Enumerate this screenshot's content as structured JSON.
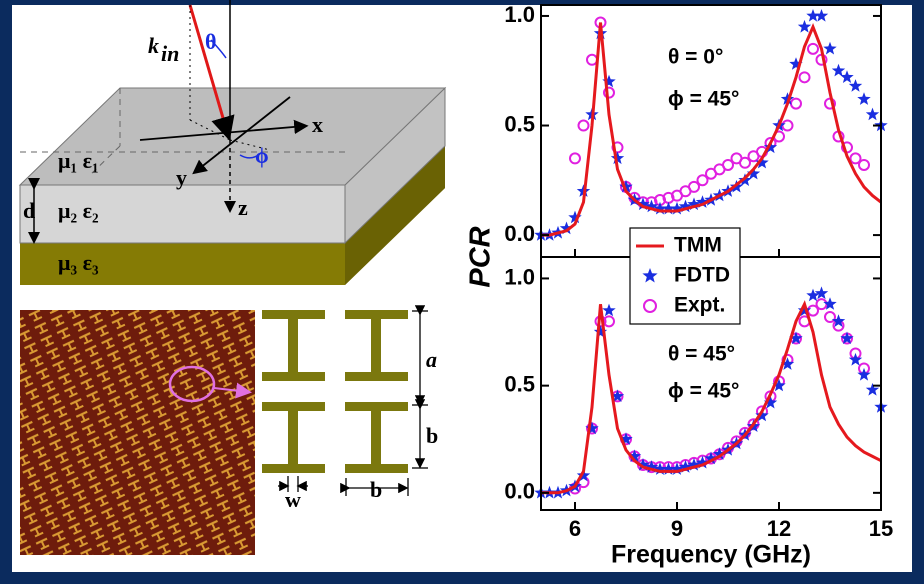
{
  "diagram": {
    "k": "k",
    "k_sub": "in",
    "theta": "θ",
    "x": "x",
    "y": "y",
    "z": "z",
    "phi": "ϕ",
    "layer1": "μ₁ ε₁",
    "layer2": "μ₂ ε₂",
    "layer3": "μ₃ ε₃",
    "d": "d",
    "a": "a",
    "b_vertical": "b",
    "w": "w",
    "b_horizontal": "b"
  },
  "chart_data": [
    {
      "type": "scatter",
      "ylabel": "PCR",
      "annotations": [
        "θ = 0°",
        "ϕ = 45°"
      ],
      "x": [
        5,
        5.25,
        5.5,
        5.75,
        6,
        6.25,
        6.5,
        6.75,
        7,
        7.25,
        7.5,
        7.75,
        8,
        8.25,
        8.5,
        8.75,
        9,
        9.25,
        9.5,
        9.75,
        10,
        10.25,
        10.5,
        10.75,
        11,
        11.25,
        11.5,
        11.75,
        12,
        12.25,
        12.5,
        12.75,
        13,
        13.25,
        13.5,
        13.75,
        14,
        14.25,
        14.5,
        14.75,
        15
      ],
      "series": [
        {
          "name": "TMM",
          "style": "line",
          "color": "#e5191e",
          "values": [
            0,
            0,
            0.01,
            0.02,
            0.05,
            0.15,
            0.5,
            0.97,
            0.55,
            0.3,
            0.2,
            0.16,
            0.13,
            0.12,
            0.11,
            0.11,
            0.11,
            0.12,
            0.13,
            0.14,
            0.16,
            0.18,
            0.2,
            0.23,
            0.26,
            0.3,
            0.35,
            0.42,
            0.5,
            0.6,
            0.72,
            0.86,
            0.95,
            0.85,
            0.65,
            0.48,
            0.36,
            0.28,
            0.22,
            0.18,
            0.15
          ]
        },
        {
          "name": "FDTD",
          "style": "star",
          "color": "#1a2ee0",
          "values": [
            0,
            0,
            0.01,
            0.03,
            0.08,
            0.2,
            0.55,
            0.92,
            0.7,
            0.35,
            0.22,
            0.16,
            0.14,
            0.13,
            0.12,
            0.12,
            0.12,
            0.13,
            0.14,
            0.15,
            0.16,
            0.18,
            0.2,
            0.22,
            0.25,
            0.28,
            0.33,
            0.4,
            0.5,
            0.62,
            0.78,
            0.95,
            1.0,
            1.0,
            0.85,
            0.75,
            0.72,
            0.68,
            0.62,
            0.55,
            0.5
          ]
        },
        {
          "name": "Expt.",
          "style": "circle",
          "color": "#e020e0",
          "values": [
            null,
            null,
            null,
            null,
            0.35,
            0.5,
            0.8,
            0.97,
            0.65,
            0.4,
            0.22,
            0.17,
            0.15,
            0.15,
            0.16,
            0.17,
            0.18,
            0.2,
            0.22,
            0.25,
            0.28,
            0.3,
            0.32,
            0.35,
            0.33,
            0.36,
            0.38,
            0.42,
            0.45,
            0.5,
            0.6,
            0.72,
            0.85,
            0.8,
            0.6,
            0.45,
            0.4,
            0.35,
            0.32,
            null,
            null
          ]
        }
      ],
      "xlim": [
        5,
        15
      ],
      "ylim": [
        -0.1,
        1.05
      ],
      "yticks": [
        {
          "value": 0,
          "label": "0.0"
        },
        0.5,
        {
          "value": 1,
          "label": "1.0"
        }
      ],
      "legend": "center"
    },
    {
      "type": "scatter",
      "xlabel": "Frequency (GHz)",
      "annotations": [
        "θ = 45°",
        "ϕ = 45°"
      ],
      "x": [
        5,
        5.25,
        5.5,
        5.75,
        6,
        6.25,
        6.5,
        6.75,
        7,
        7.25,
        7.5,
        7.75,
        8,
        8.25,
        8.5,
        8.75,
        9,
        9.25,
        9.5,
        9.75,
        10,
        10.25,
        10.5,
        10.75,
        11,
        11.25,
        11.5,
        11.75,
        12,
        12.25,
        12.5,
        12.75,
        13,
        13.25,
        13.5,
        13.75,
        14,
        14.25,
        14.5,
        14.75,
        15
      ],
      "series": [
        {
          "style": "line",
          "color": "#e5191e",
          "values": [
            0,
            0,
            0,
            0.01,
            0.03,
            0.1,
            0.4,
            0.88,
            0.55,
            0.3,
            0.2,
            0.15,
            0.12,
            0.11,
            0.1,
            0.1,
            0.1,
            0.11,
            0.12,
            0.13,
            0.15,
            0.17,
            0.2,
            0.23,
            0.27,
            0.32,
            0.38,
            0.46,
            0.55,
            0.67,
            0.8,
            0.88,
            0.75,
            0.55,
            0.4,
            0.32,
            0.26,
            0.22,
            0.19,
            0.17,
            0.15
          ]
        },
        {
          "style": "star",
          "color": "#1a2ee0",
          "values": [
            0,
            0,
            0,
            0.01,
            0.03,
            0.08,
            0.3,
            0.75,
            0.85,
            0.45,
            0.25,
            0.17,
            0.13,
            0.12,
            0.11,
            0.11,
            0.11,
            0.12,
            0.13,
            0.14,
            0.16,
            0.18,
            0.2,
            0.23,
            0.27,
            0.31,
            0.36,
            0.42,
            0.5,
            0.6,
            0.72,
            0.85,
            0.92,
            0.93,
            0.88,
            0.8,
            0.72,
            0.62,
            0.55,
            0.48,
            0.4
          ]
        },
        {
          "style": "circle",
          "color": "#e020e0",
          "values": [
            null,
            null,
            null,
            null,
            0.02,
            0.05,
            0.3,
            0.8,
            0.8,
            0.45,
            0.25,
            0.17,
            0.13,
            0.12,
            0.12,
            0.12,
            0.12,
            0.13,
            0.14,
            0.15,
            0.16,
            0.18,
            0.21,
            0.24,
            0.28,
            0.32,
            0.38,
            0.45,
            0.52,
            0.62,
            0.72,
            0.8,
            0.85,
            0.88,
            0.82,
            0.78,
            0.72,
            0.65,
            0.58,
            null,
            null
          ]
        }
      ],
      "xlim": [
        5,
        15
      ],
      "ylim": [
        -0.08,
        1.1
      ],
      "xticks": [
        6,
        9,
        12,
        15
      ],
      "yticks": [
        {
          "value": 0,
          "label": "0.0"
        },
        0.5,
        {
          "value": 1,
          "label": "1.0"
        }
      ]
    }
  ]
}
